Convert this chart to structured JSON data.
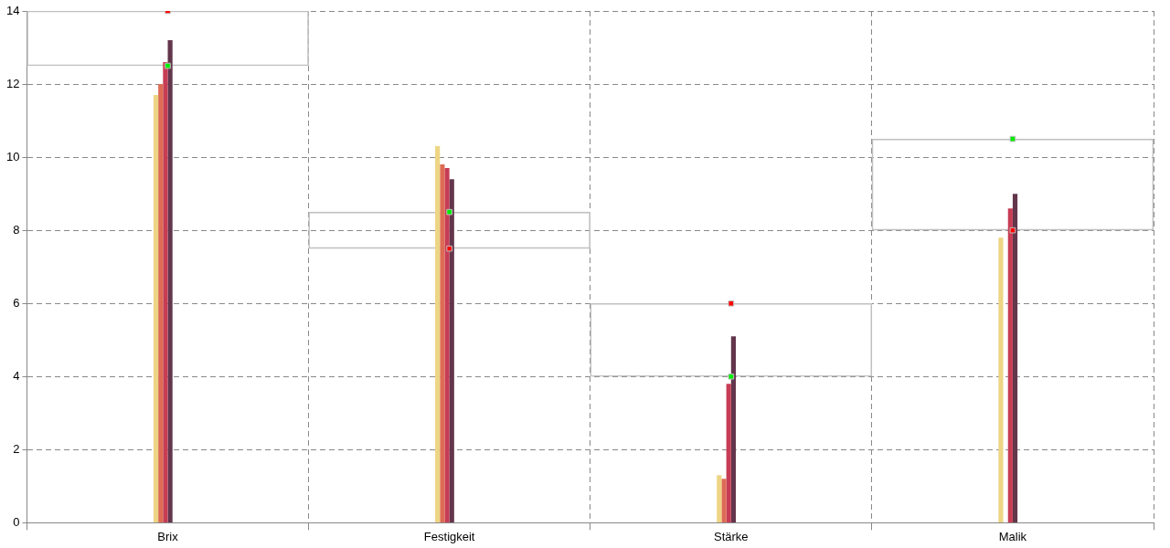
{
  "chart_data": {
    "type": "bar",
    "categories": [
      "Brix",
      "Festigkeit",
      "Stärke",
      "Malik"
    ],
    "series": [
      {
        "type": "bar",
        "color": "#c0c0c0",
        "base": [
          12.5,
          7.5,
          4,
          8
        ],
        "values": [
          1.5,
          1,
          2,
          2.5
        ]
      },
      {
        "color": "#edd585",
        "values": [
          11.7,
          10.3,
          1.3,
          7.8
        ]
      },
      {
        "color": "#dd6b55",
        "values": [
          12.0,
          9.8,
          1.2,
          0
        ]
      },
      {
        "color": "#c63d55",
        "values": [
          12.6,
          9.7,
          3.8,
          8.6
        ]
      },
      {
        "color": "#63364c",
        "values": [
          13.2,
          9.4,
          5.1,
          9.0
        ]
      },
      {
        "type": "scatter",
        "color": "#ff0000",
        "x": [
          "Brix",
          "Festigkeit",
          "Stärke",
          "Malik"
        ],
        "values": [
          14,
          7.5,
          6,
          8
        ]
      },
      {
        "type": "scatter",
        "color": "#00ee00",
        "x": [
          "Brix",
          "Festigkeit",
          "Stärke",
          "Malik"
        ],
        "values": [
          12.5,
          8.5,
          4,
          10.5
        ]
      }
    ],
    "ylim": [
      0,
      14
    ],
    "yticks": [
      0,
      2,
      4,
      6,
      8,
      10,
      12,
      14
    ],
    "grid": true,
    "legend": false,
    "marker": "square"
  }
}
